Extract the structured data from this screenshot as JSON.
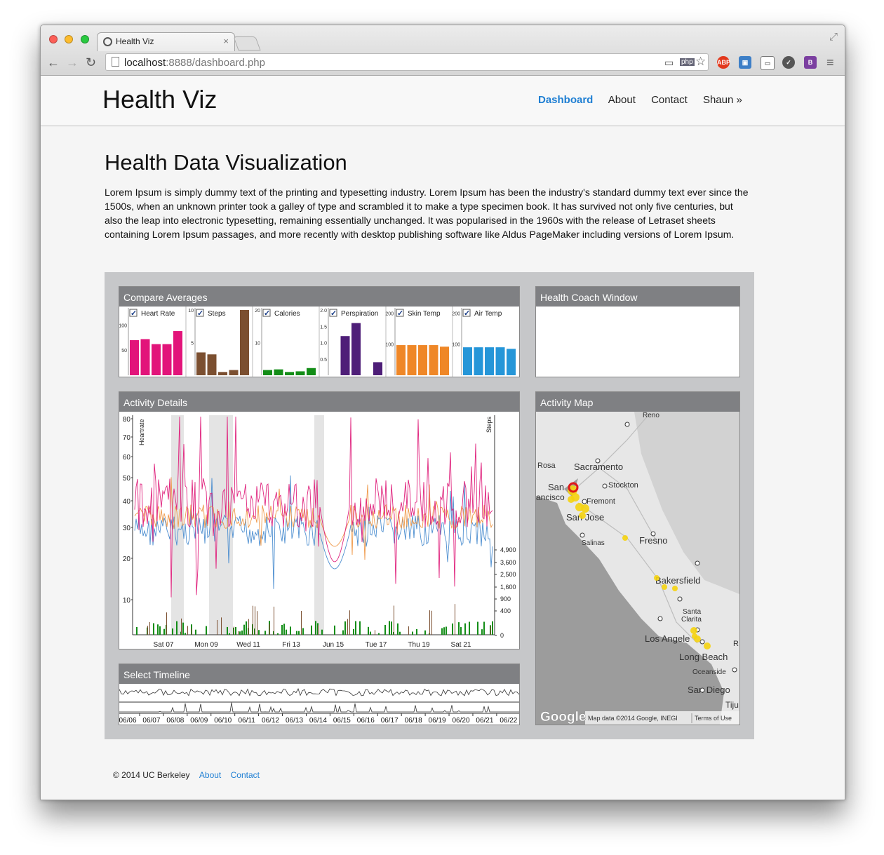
{
  "browser": {
    "tab_title": "Health Viz",
    "url_host": "localhost",
    "url_rest": ":8888/dashboard.php"
  },
  "site": {
    "brand": "Health Viz",
    "nav": [
      "Dashboard",
      "About",
      "Contact",
      "Shaun »"
    ],
    "active_nav": "Dashboard"
  },
  "page": {
    "title": "Health Data Visualization",
    "intro": "Lorem Ipsum is simply dummy text of the printing and typesetting industry. Lorem Ipsum has been the industry's standard dummy text ever since the 1500s, when an unknown printer took a galley of type and scrambled it to make a type specimen book. It has survived not only five centuries, but also the leap into electronic typesetting, remaining essentially unchanged. It was popularised in the 1960s with the release of Letraset sheets containing Lorem Ipsum passages, and more recently with desktop publishing software like Aldus PageMaker including versions of Lorem Ipsum."
  },
  "panels": {
    "compare": "Compare Averages",
    "coach": "Health Coach Window",
    "activity": "Activity Details",
    "map": "Activity Map",
    "timeline": "Select Timeline"
  },
  "chart_data": [
    {
      "type": "bar",
      "title": "Compare Averages",
      "panels": [
        {
          "label": "Heart Rate",
          "color": "#e2147a",
          "ticks": [
            "100",
            "50"
          ],
          "values": [
            70,
            72,
            62,
            62,
            88
          ],
          "ylim": [
            0,
            130
          ]
        },
        {
          "label": "Steps",
          "color": "#7b4f30",
          "ticks": [
            "10",
            "5"
          ],
          "values": [
            3.5,
            3.2,
            0.5,
            0.8,
            10
          ],
          "ylim": [
            0,
            10
          ]
        },
        {
          "label": "Calories",
          "color": "#138d17",
          "ticks": [
            "20",
            "10"
          ],
          "values": [
            1.6,
            1.8,
            1.0,
            1.2,
            2.2
          ],
          "ylim": [
            0,
            20
          ]
        },
        {
          "label": "Perspiration",
          "color": "#4e1e78",
          "ticks": [
            "2.0",
            "1.5",
            "1.0",
            "0.5"
          ],
          "values": [
            0,
            1.2,
            1.6,
            0,
            0.4
          ],
          "ylim": [
            0,
            2
          ]
        },
        {
          "label": "Skin Temp",
          "color": "#ef8727",
          "ticks": [
            "200",
            "100"
          ],
          "values": [
            97,
            97,
            97,
            97,
            92
          ],
          "ylim": [
            0,
            210
          ]
        },
        {
          "label": "Air Temp",
          "color": "#2596d8",
          "ticks": [
            "200",
            "100"
          ],
          "values": [
            90,
            90,
            90,
            90,
            85
          ],
          "ylim": [
            0,
            210
          ]
        }
      ]
    },
    {
      "type": "line",
      "title": "Activity Details",
      "ylabel": "Heartrate",
      "y2label": "Steps",
      "yticks": [
        "80",
        "70",
        "60",
        "50",
        "40",
        "30",
        "20",
        "10"
      ],
      "y2ticks": [
        "4,900",
        "3,600",
        "2,500",
        "1,600",
        "900",
        "400",
        "0"
      ],
      "xticks": [
        "Sat 07",
        "Mon 09",
        "Wed 11",
        "Fri 13",
        "Jun 15",
        "Tue 17",
        "Thu 19",
        "Sat 21"
      ]
    },
    {
      "type": "line",
      "title": "Select Timeline",
      "xticks": [
        "06/06",
        "06/07",
        "06/08",
        "06/09",
        "06/10",
        "06/11",
        "06/12",
        "06/13",
        "06/14",
        "06/15",
        "06/16",
        "06/17",
        "06/18",
        "06/19",
        "06/20",
        "06/21",
        "06/22"
      ]
    }
  ],
  "map": {
    "cities": [
      "Reno",
      "Rosa",
      "Sacramento",
      "Stockton",
      "San",
      "ancisco",
      "Fremont",
      "San Jose",
      "Salinas",
      "Fresno",
      "Bakersfield",
      "Santa",
      "Clarita",
      "Los Angele",
      "Long Beach",
      "Oceanside",
      "San Diego",
      "Tiju",
      "R"
    ],
    "attribution": "Map data ©2014 Google, INEGI",
    "terms": "Terms of Use",
    "logo": "Google"
  },
  "footer": {
    "copyright": "© 2014 UC Berkeley",
    "links": [
      "About",
      "Contact"
    ]
  }
}
